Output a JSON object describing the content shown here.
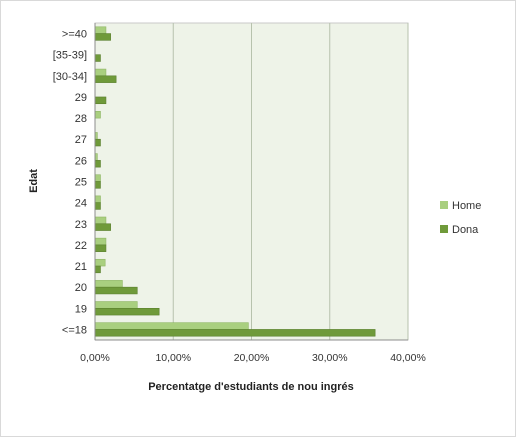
{
  "chart_data": {
    "type": "bar",
    "orientation": "horizontal",
    "categories": [
      "<=18",
      "19",
      "20",
      "21",
      "22",
      "23",
      "24",
      "25",
      "26",
      "27",
      "28",
      "29",
      "[30-34]",
      "[35-39]",
      ">=40"
    ],
    "series": [
      {
        "name": "Home",
        "values": [
          19.6,
          5.4,
          3.5,
          1.3,
          1.4,
          1.4,
          0.7,
          0.7,
          0.3,
          0.3,
          0.7,
          0.0,
          1.4,
          0.0,
          1.4
        ]
      },
      {
        "name": "Dona",
        "values": [
          35.8,
          8.2,
          5.4,
          0.7,
          1.4,
          2.0,
          0.7,
          0.7,
          0.7,
          0.7,
          0.0,
          1.4,
          2.7,
          0.7,
          2.0
        ]
      }
    ],
    "xlabel": "Percentatge d'estudiants de nou ingrés",
    "ylabel": "Edat",
    "xlim": [
      0,
      40
    ],
    "x_ticks": [
      0,
      10,
      20,
      30,
      40
    ],
    "x_tick_labels": [
      "0,00%",
      "10,00%",
      "20,00%",
      "30,00%",
      "40,00%"
    ],
    "grid": "vertical",
    "legend": "right",
    "colors": {
      "Home": "#a9cf7f",
      "Dona": "#6f9a3a",
      "plot_background": "#eef3e8",
      "grid": "#b7c2ad"
    }
  }
}
